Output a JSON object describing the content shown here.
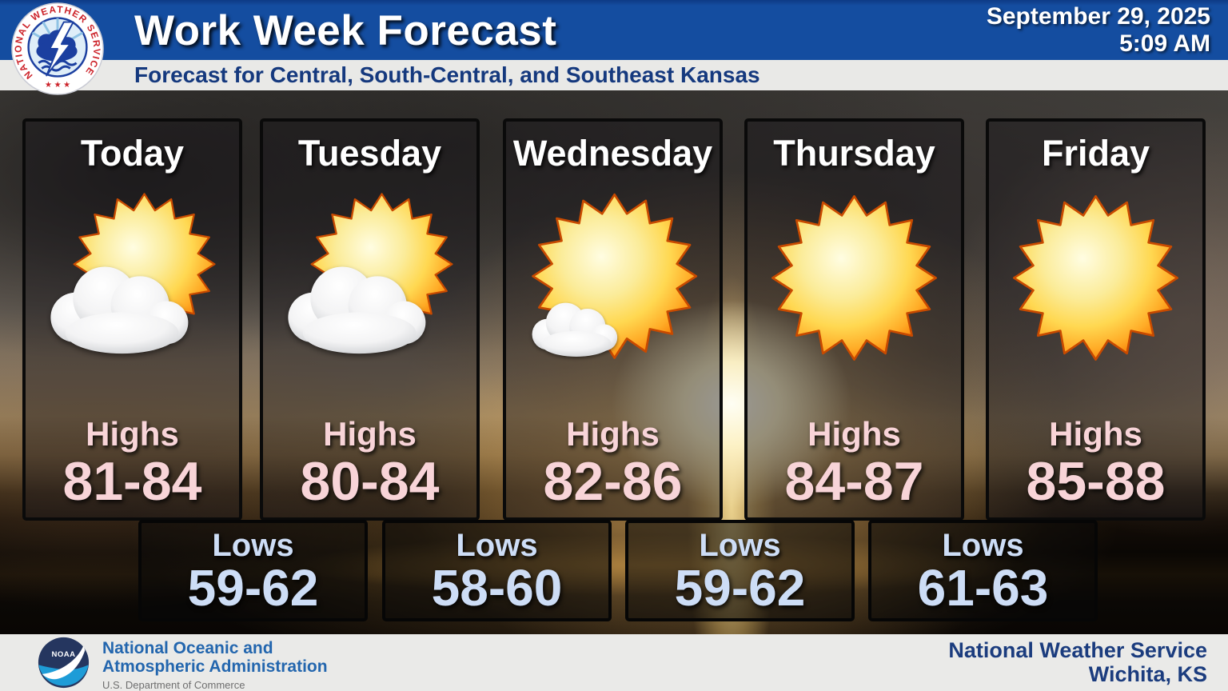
{
  "header": {
    "title": "Work Week Forecast",
    "date": "September 29, 2025",
    "time": "5:09 AM",
    "subtitle": "Forecast for Central, South-Central, and Southeast Kansas"
  },
  "branding": {
    "nws_ring_text": "NATIONAL WEATHER SERVICE",
    "nws_stars": "★ ★ ★",
    "noaa_text": "NOAA"
  },
  "colors": {
    "header_blue": "#144da0",
    "subtitle_navy": "#15397e",
    "highs_pink": "#f8d4d8",
    "lows_blue": "#cdddf6",
    "footer_org_blue": "#2366ae",
    "footer_office_navy": "#1b3c7e"
  },
  "forecast": {
    "highs_label": "Highs",
    "lows_label": "Lows",
    "days": [
      {
        "name": "Today",
        "icon": "partly-cloudy",
        "highs": "81-84"
      },
      {
        "name": "Tuesday",
        "icon": "partly-cloudy",
        "highs": "80-84"
      },
      {
        "name": "Wednesday",
        "icon": "mostly-sunny",
        "highs": "82-86"
      },
      {
        "name": "Thursday",
        "icon": "sunny",
        "highs": "84-87"
      },
      {
        "name": "Friday",
        "icon": "sunny",
        "highs": "85-88"
      }
    ],
    "lows": [
      "59-62",
      "58-60",
      "59-62",
      "61-63"
    ]
  },
  "footer": {
    "org_line1": "National Oceanic and",
    "org_line2": "Atmospheric Administration",
    "dept": "U.S. Department of Commerce",
    "office_line1": "National Weather Service",
    "office_line2": "Wichita, KS"
  }
}
